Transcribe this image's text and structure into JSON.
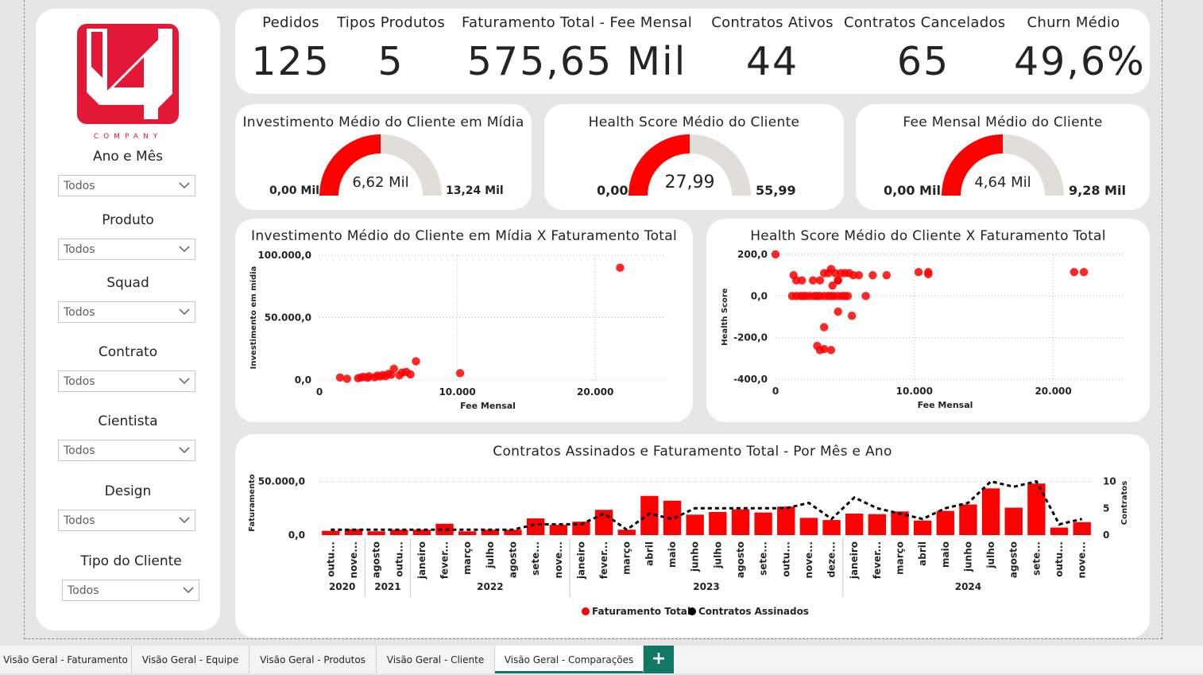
{
  "colors": {
    "accent": "#ff0000",
    "gauge_track": "#e1ddd8",
    "tab_active": "#117865",
    "logo_red": "#e31837"
  },
  "logo": {
    "text": "COMPANY"
  },
  "filters": [
    {
      "label": "Ano e Mês",
      "value": "Todos"
    },
    {
      "label": "Produto",
      "value": "Todos"
    },
    {
      "label": "Squad",
      "value": "Todos"
    },
    {
      "label": "Contrato",
      "value": "Todos"
    },
    {
      "label": "Cientista",
      "value": "Todos"
    },
    {
      "label": "Design",
      "value": "Todos"
    },
    {
      "label": "Tipo do Cliente",
      "value": "Todos"
    }
  ],
  "kpis": [
    {
      "label": "Pedidos",
      "value": "125"
    },
    {
      "label": "Tipos Produtos",
      "value": "5"
    },
    {
      "label": "Faturamento Total - Fee Mensal",
      "value": "575,65 Mil"
    },
    {
      "label": "Contratos Ativos",
      "value": "44"
    },
    {
      "label": "Contratos Cancelados",
      "value": "65"
    },
    {
      "label": "Churn Médio",
      "value": "49,6%"
    }
  ],
  "gauges": [
    {
      "title": "Investimento Médio do Cliente em Mídia",
      "min": "0,00 Mil",
      "max": "13,24 Mil",
      "value": "6,62 Mil",
      "fraction": 0.5
    },
    {
      "title": "Health Score Médio do Cliente",
      "min": "0,00",
      "max": "55,99",
      "value": "27,99",
      "fraction": 0.5
    },
    {
      "title": "Fee Mensal Médio do Cliente",
      "min": "0,00 Mil",
      "max": "9,28 Mil",
      "value": "4,64 Mil",
      "fraction": 0.5
    }
  ],
  "chart_data": [
    {
      "type": "scatter",
      "title": "Investimento Médio do Cliente em Mídia X Faturamento Total",
      "xlabel": "Fee Mensal",
      "ylabel": "Investimento em mídia",
      "xlim": [
        0,
        25000
      ],
      "ylim": [
        0,
        100000
      ],
      "xticks": [
        0,
        10000,
        20000
      ],
      "xtick_labels": [
        "0",
        "10.000",
        "20.000"
      ],
      "yticks": [
        0,
        50000,
        100000
      ],
      "ytick_labels": [
        "0,0",
        "50.000,0",
        "100.000,0"
      ],
      "grid": true,
      "points": [
        [
          1500,
          2000
        ],
        [
          2000,
          1000
        ],
        [
          2800,
          1500
        ],
        [
          3000,
          2000
        ],
        [
          3200,
          2500
        ],
        [
          3500,
          1800
        ],
        [
          3600,
          3000
        ],
        [
          4000,
          2200
        ],
        [
          4200,
          3500
        ],
        [
          4400,
          2800
        ],
        [
          4600,
          4000
        ],
        [
          4800,
          3000
        ],
        [
          5000,
          5000
        ],
        [
          5200,
          4200
        ],
        [
          5400,
          9000
        ],
        [
          5800,
          3800
        ],
        [
          6000,
          6000
        ],
        [
          6300,
          6500
        ],
        [
          6600,
          4500
        ],
        [
          7000,
          15000
        ],
        [
          10200,
          5500
        ],
        [
          21800,
          90000
        ]
      ]
    },
    {
      "type": "scatter",
      "title": "Health Score Médio do Cliente X Faturamento Total",
      "xlabel": "Fee Mensal",
      "ylabel": "Health Score",
      "xlim": [
        0,
        25000
      ],
      "ylim": [
        -400,
        200
      ],
      "xticks": [
        0,
        10000,
        20000
      ],
      "xtick_labels": [
        "0",
        "10.000",
        "20.000"
      ],
      "yticks": [
        -400,
        -200,
        0,
        200
      ],
      "ytick_labels": [
        "-400,0",
        "-200,0",
        "0,0",
        "200,0"
      ],
      "grid": true,
      "points": [
        [
          0,
          200
        ],
        [
          1200,
          0
        ],
        [
          1500,
          0
        ],
        [
          1800,
          0
        ],
        [
          2000,
          0
        ],
        [
          2200,
          0
        ],
        [
          2500,
          0
        ],
        [
          2800,
          0
        ],
        [
          3000,
          0
        ],
        [
          3200,
          0
        ],
        [
          3500,
          0
        ],
        [
          3800,
          0
        ],
        [
          4000,
          0
        ],
        [
          4200,
          0
        ],
        [
          4500,
          0
        ],
        [
          4800,
          0
        ],
        [
          5000,
          0
        ],
        [
          5200,
          0
        ],
        [
          6500,
          0
        ],
        [
          1300,
          100
        ],
        [
          1500,
          75
        ],
        [
          1900,
          75
        ],
        [
          2700,
          75
        ],
        [
          3200,
          75
        ],
        [
          3500,
          110
        ],
        [
          3800,
          110
        ],
        [
          4000,
          130
        ],
        [
          4100,
          50
        ],
        [
          4300,
          110
        ],
        [
          4500,
          75
        ],
        [
          4700,
          110
        ],
        [
          5000,
          110
        ],
        [
          5300,
          110
        ],
        [
          5600,
          100
        ],
        [
          6000,
          100
        ],
        [
          7000,
          100
        ],
        [
          8000,
          100
        ],
        [
          10300,
          115
        ],
        [
          11000,
          115
        ],
        [
          11000,
          105
        ],
        [
          21500,
          115
        ],
        [
          22200,
          115
        ],
        [
          3500,
          -150
        ],
        [
          4500,
          -75
        ],
        [
          5500,
          -95
        ],
        [
          3000,
          -240
        ],
        [
          3200,
          -260
        ],
        [
          3500,
          -255
        ],
        [
          4000,
          -260
        ],
        [
          4500,
          75
        ]
      ]
    },
    {
      "type": "bar",
      "title": "Contratos Assinados e Faturamento Total - Por Mês e Ano",
      "ylabel": "Faturamento",
      "y2label": "Contratos",
      "ylim": [
        0,
        60000
      ],
      "y2lim": [
        0,
        12
      ],
      "yticks": [
        0,
        50000
      ],
      "ytick_labels": [
        "0,0",
        "50.000,0"
      ],
      "y2ticks": [
        0,
        5,
        10
      ],
      "grid": true,
      "legend_position": "bottom",
      "categories": [
        "outu...",
        "nove...",
        "agosto",
        "outu...",
        "janeiro",
        "fever...",
        "março",
        "julho",
        "agosto",
        "sete...",
        "nove...",
        "janeiro",
        "fever...",
        "março",
        "abril",
        "maio",
        "junho",
        "julho",
        "agosto",
        "sete...",
        "outu...",
        "nove...",
        "deze...",
        "janeiro",
        "fever...",
        "março",
        "abril",
        "maio",
        "junho",
        "julho",
        "agosto",
        "sete...",
        "outu...",
        "nove..."
      ],
      "year_groups": [
        {
          "label": "2020",
          "start": 0,
          "count": 2
        },
        {
          "label": "2021",
          "start": 2,
          "count": 2
        },
        {
          "label": "2022",
          "start": 4,
          "count": 7
        },
        {
          "label": "2023",
          "start": 11,
          "count": 12
        },
        {
          "label": "2024",
          "start": 23,
          "count": 11
        }
      ],
      "series": [
        {
          "name": "Faturamento Total",
          "type": "bar",
          "color": "#ff0000",
          "values": [
            4000,
            5500,
            3500,
            5000,
            5000,
            10500,
            3500,
            5000,
            5000,
            15500,
            9500,
            12500,
            23500,
            5000,
            36500,
            32000,
            19000,
            21500,
            24000,
            21000,
            26500,
            16000,
            14000,
            20000,
            19500,
            22000,
            13500,
            22500,
            28500,
            43500,
            25500,
            48000,
            7000,
            12000
          ]
        },
        {
          "name": "Contratos Assinados",
          "type": "line",
          "style": "dashed",
          "color": "#000000",
          "values": [
            1,
            1,
            1,
            1,
            1,
            1,
            1,
            1,
            1,
            2,
            2,
            2,
            4,
            1,
            4,
            3,
            5,
            5,
            5,
            5,
            5,
            6,
            3,
            7,
            5,
            4,
            3,
            5,
            6,
            10,
            9,
            10,
            2,
            3
          ]
        }
      ]
    }
  ],
  "tabs": [
    {
      "label": "Visão Geral - Faturamento",
      "active": false
    },
    {
      "label": "Visão Geral - Equipe",
      "active": false
    },
    {
      "label": "Visão Geral - Produtos",
      "active": false
    },
    {
      "label": "Visão Geral - Cliente",
      "active": false
    },
    {
      "label": "Visão Geral - Comparações",
      "active": true
    }
  ],
  "tab_add_label": "+"
}
